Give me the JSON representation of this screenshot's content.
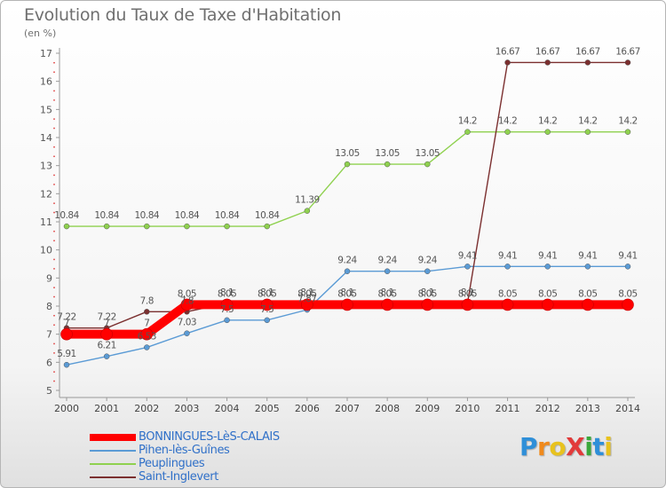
{
  "title": "Evolution du Taux de Taxe d'Habitation",
  "unit_label": "(en %)",
  "logo": {
    "text": "ProXiti",
    "letters": [
      "P",
      "r",
      "o",
      "X",
      "i",
      "t",
      "i"
    ],
    "colors": [
      "#2f8fd8",
      "#f08a1c",
      "#e8c21e",
      "#e23a3a",
      "#3aa83a",
      "#2f8fd8",
      "#e8c21e"
    ]
  },
  "chart_data": {
    "type": "line",
    "title": "Evolution du Taux de Taxe d'Habitation",
    "xlabel": "",
    "ylabel": "(en %)",
    "ylim": [
      5,
      17
    ],
    "yticks": [
      5,
      6,
      7,
      8,
      9,
      10,
      11,
      12,
      13,
      14,
      15,
      16,
      17
    ],
    "grid": false,
    "legend_position": "bottom-left",
    "x": [
      2000,
      2001,
      2002,
      2003,
      2004,
      2005,
      2006,
      2007,
      2008,
      2009,
      2010,
      2011,
      2012,
      2013,
      2014
    ],
    "series": [
      {
        "name": "BONNINGUES-LèS-CALAIS",
        "color": "#ff0000",
        "values": [
          7,
          7,
          7,
          8.05,
          8.05,
          8.05,
          8.05,
          8.05,
          8.05,
          8.05,
          8.05,
          8.05,
          8.05,
          8.05,
          8.05
        ],
        "labels": [
          "7",
          "7",
          "7",
          "8.05",
          "8.05",
          "8.05",
          "8.05",
          "8.05",
          "8.05",
          "8.05",
          "8.05",
          "8.05",
          "8.05",
          "8.05",
          "8.05"
        ]
      },
      {
        "name": "Pihen-lès-Guînes",
        "color": "#5b9bd5",
        "values": [
          5.91,
          6.21,
          6.53,
          7.03,
          7.5,
          7.5,
          7.87,
          9.24,
          9.24,
          9.24,
          9.41,
          9.41,
          9.41,
          9.41,
          9.41
        ],
        "labels": [
          "5.91",
          "6.21",
          "6.53",
          "7.03",
          "7.5",
          "7.5",
          "7.87",
          "9.24",
          "9.24",
          "9.24",
          "9.41",
          "9.41",
          "9.41",
          "9.41",
          "9.41"
        ]
      },
      {
        "name": "Peuplingues",
        "color": "#8fd14f",
        "values": [
          10.84,
          10.84,
          10.84,
          10.84,
          10.84,
          10.84,
          11.39,
          13.05,
          13.05,
          13.05,
          14.2,
          14.2,
          14.2,
          14.2,
          14.2
        ],
        "labels": [
          "10.84",
          "10.84",
          "10.84",
          "10.84",
          "10.84",
          "10.84",
          "11.39",
          "13.05",
          "13.05",
          "13.05",
          "14.2",
          "14.2",
          "14.2",
          "14.2",
          "14.2"
        ]
      },
      {
        "name": "Saint-Inglevert",
        "color": "#7b2f2f",
        "values": [
          7.22,
          7.22,
          7.8,
          7.8,
          8.1,
          8.1,
          8.1,
          8.1,
          8.1,
          8.1,
          8.1,
          16.67,
          16.67,
          16.67,
          16.67
        ],
        "labels": [
          "7.22",
          "7.22",
          "7.8",
          "7.8",
          "8.1",
          "8.1",
          "8.1",
          "8.1",
          "8.1",
          "8.1",
          "8.1",
          "16.67",
          "16.67",
          "16.67",
          "16.67"
        ]
      }
    ]
  }
}
